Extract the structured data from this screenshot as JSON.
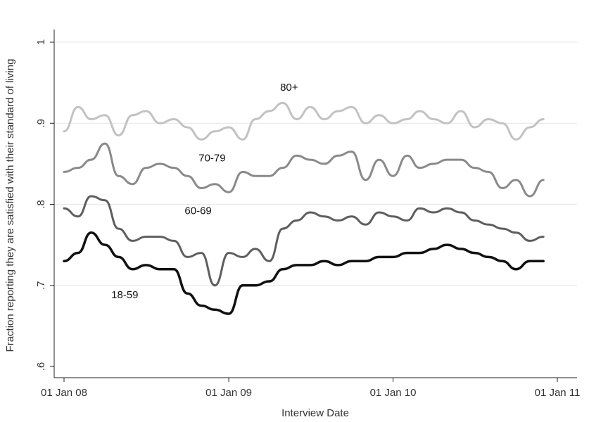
{
  "chart_data": {
    "type": "line",
    "xlabel": "Interview Date",
    "ylabel": "Fraction reporting they are satisfied with their standard of living",
    "ylim": [
      0.6,
      1.0
    ],
    "xlim": [
      "2008-01-01",
      "2010-12-31"
    ],
    "x_ticks": [
      "2008-01-01",
      "2009-01-01",
      "2010-01-01",
      "2011-01-01"
    ],
    "x_tick_labels": [
      "01 Jan 08",
      "01 Jan 09",
      "01 Jan 10",
      "01 Jan 11"
    ],
    "y_ticks": [
      0.6,
      0.7,
      0.8,
      0.9,
      1.0
    ],
    "y_tick_labels": [
      ".6",
      ".7",
      ".8",
      ".9",
      "1"
    ],
    "grid": true,
    "x": [
      "2008-01-01",
      "2008-02-01",
      "2008-03-01",
      "2008-04-01",
      "2008-05-01",
      "2008-06-01",
      "2008-07-01",
      "2008-08-01",
      "2008-09-01",
      "2008-10-01",
      "2008-11-01",
      "2008-12-01",
      "2009-01-01",
      "2009-02-01",
      "2009-03-01",
      "2009-04-01",
      "2009-05-01",
      "2009-06-01",
      "2009-07-01",
      "2009-08-01",
      "2009-09-01",
      "2009-10-01",
      "2009-11-01",
      "2009-12-01",
      "2010-01-01",
      "2010-02-01",
      "2010-03-01",
      "2010-04-01",
      "2010-05-01",
      "2010-06-01",
      "2010-07-01",
      "2010-08-01",
      "2010-09-01",
      "2010-10-01",
      "2010-11-01",
      "2010-12-01"
    ],
    "series": [
      {
        "name": "80+",
        "color": "#c2c2c2",
        "stroke_width": 3,
        "values": [
          0.89,
          0.92,
          0.905,
          0.91,
          0.885,
          0.91,
          0.915,
          0.9,
          0.905,
          0.895,
          0.88,
          0.89,
          0.895,
          0.88,
          0.905,
          0.915,
          0.925,
          0.905,
          0.92,
          0.905,
          0.915,
          0.92,
          0.9,
          0.91,
          0.9,
          0.905,
          0.915,
          0.905,
          0.9,
          0.915,
          0.895,
          0.905,
          0.9,
          0.88,
          0.895,
          0.905
        ]
      },
      {
        "name": "70-79",
        "color": "#8a8a8a",
        "stroke_width": 3,
        "values": [
          0.84,
          0.845,
          0.855,
          0.875,
          0.835,
          0.825,
          0.845,
          0.85,
          0.845,
          0.835,
          0.82,
          0.825,
          0.815,
          0.84,
          0.835,
          0.835,
          0.845,
          0.86,
          0.855,
          0.85,
          0.86,
          0.865,
          0.83,
          0.855,
          0.835,
          0.86,
          0.845,
          0.85,
          0.855,
          0.855,
          0.845,
          0.84,
          0.82,
          0.83,
          0.81,
          0.83
        ]
      },
      {
        "name": "60-69",
        "color": "#5e5e5e",
        "stroke_width": 3,
        "values": [
          0.795,
          0.785,
          0.81,
          0.805,
          0.77,
          0.755,
          0.76,
          0.76,
          0.755,
          0.735,
          0.74,
          0.7,
          0.74,
          0.735,
          0.745,
          0.73,
          0.77,
          0.78,
          0.79,
          0.785,
          0.78,
          0.785,
          0.775,
          0.79,
          0.785,
          0.78,
          0.795,
          0.79,
          0.795,
          0.79,
          0.78,
          0.775,
          0.77,
          0.765,
          0.755,
          0.76
        ]
      },
      {
        "name": "18-59",
        "color": "#111111",
        "stroke_width": 3.5,
        "values": [
          0.73,
          0.74,
          0.765,
          0.75,
          0.735,
          0.72,
          0.725,
          0.72,
          0.72,
          0.69,
          0.675,
          0.67,
          0.665,
          0.7,
          0.7,
          0.705,
          0.72,
          0.725,
          0.725,
          0.73,
          0.725,
          0.73,
          0.73,
          0.735,
          0.735,
          0.74,
          0.74,
          0.745,
          0.75,
          0.745,
          0.74,
          0.735,
          0.73,
          0.72,
          0.73,
          0.73
        ]
      }
    ],
    "series_labels": [
      {
        "text": "80+",
        "x": "2009-05-15",
        "y": 0.94
      },
      {
        "text": "70-79",
        "x": "2008-11-25",
        "y": 0.853
      },
      {
        "text": "60-69",
        "x": "2008-10-25",
        "y": 0.788
      },
      {
        "text": "18-59",
        "x": "2008-05-15",
        "y": 0.684
      }
    ]
  }
}
